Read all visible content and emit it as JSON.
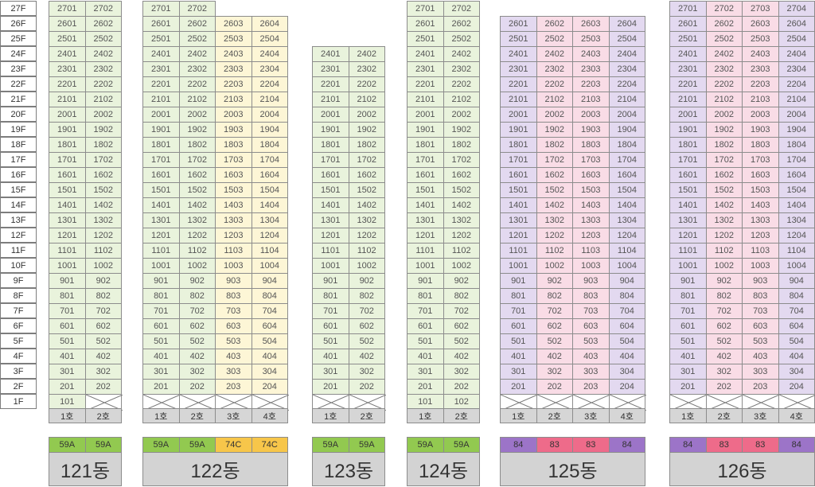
{
  "colors": {
    "g": "#e9f3dc",
    "y": "#fdf6d6",
    "p": "#e3d9f0",
    "k": "#f9dce6",
    "type_g": "#92c950",
    "type_y": "#f7c64a",
    "type_p": "#9c74c8",
    "type_k": "#ee6b8a"
  },
  "floors": [
    "27F",
    "26F",
    "25F",
    "24F",
    "23F",
    "22F",
    "21F",
    "20F",
    "19F",
    "18F",
    "17F",
    "16F",
    "15F",
    "14F",
    "13F",
    "12F",
    "11F",
    "10F",
    "9F",
    "8F",
    "7F",
    "6F",
    "5F",
    "4F",
    "3F",
    "2F",
    "1F"
  ],
  "buildings": [
    {
      "name": "121동",
      "ho_labels": [
        "1호",
        "2호"
      ],
      "types": [
        "59A",
        "59A"
      ],
      "cols": [
        {
          "color": "g",
          "type_color": "g",
          "top": 27,
          "bottom": 1
        },
        {
          "color": "g",
          "type_color": "g",
          "top": 27,
          "bottom": 2
        }
      ]
    },
    {
      "name": "122동",
      "ho_labels": [
        "1호",
        "2호",
        "3호",
        "4호"
      ],
      "types": [
        "59A",
        "59A",
        "74C",
        "74C"
      ],
      "cols": [
        {
          "color": "g",
          "type_color": "g",
          "top": 27,
          "bottom": 2
        },
        {
          "color": "g",
          "type_color": "g",
          "top": 27,
          "bottom": 2
        },
        {
          "color": "y",
          "type_color": "y",
          "top": 26,
          "bottom": 2
        },
        {
          "color": "y",
          "type_color": "y",
          "top": 26,
          "bottom": 2
        }
      ]
    },
    {
      "name": "123동",
      "ho_labels": [
        "1호",
        "2호"
      ],
      "types": [
        "59A",
        "59A"
      ],
      "cols": [
        {
          "color": "g",
          "type_color": "g",
          "top": 24,
          "bottom": 2
        },
        {
          "color": "g",
          "type_color": "g",
          "top": 24,
          "bottom": 2
        }
      ]
    },
    {
      "name": "124동",
      "ho_labels": [
        "1호",
        "2호"
      ],
      "types": [
        "59A",
        "59A"
      ],
      "cols": [
        {
          "color": "g",
          "type_color": "g",
          "top": 27,
          "bottom": 1
        },
        {
          "color": "g",
          "type_color": "g",
          "top": 27,
          "bottom": 1
        }
      ]
    },
    {
      "name": "125동",
      "ho_labels": [
        "1호",
        "2호",
        "3호",
        "4호"
      ],
      "types": [
        "84",
        "83",
        "83",
        "84"
      ],
      "cols": [
        {
          "color": "p",
          "type_color": "p",
          "top": 26,
          "bottom": 2
        },
        {
          "color": "k",
          "type_color": "k",
          "top": 26,
          "bottom": 2
        },
        {
          "color": "k",
          "type_color": "k",
          "top": 26,
          "bottom": 2
        },
        {
          "color": "p",
          "type_color": "p",
          "top": 26,
          "bottom": 2
        }
      ]
    },
    {
      "name": "126동",
      "ho_labels": [
        "1호",
        "2호",
        "3호",
        "4호"
      ],
      "types": [
        "84",
        "83",
        "83",
        "84"
      ],
      "cols": [
        {
          "color": "p",
          "type_color": "p",
          "top": 27,
          "bottom": 2
        },
        {
          "color": "k",
          "type_color": "k",
          "top": 27,
          "bottom": 2
        },
        {
          "color": "k",
          "type_color": "k",
          "top": 27,
          "bottom": 2
        },
        {
          "color": "p",
          "type_color": "p",
          "top": 27,
          "bottom": 2
        }
      ]
    }
  ]
}
